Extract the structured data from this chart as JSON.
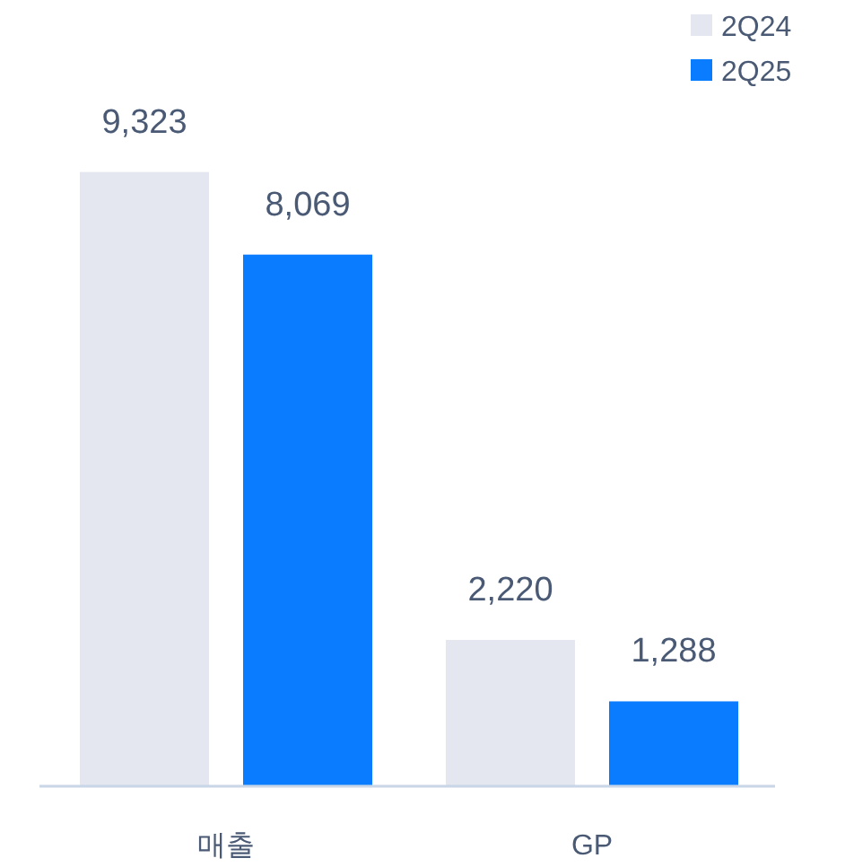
{
  "chart_data": {
    "type": "bar",
    "categories": [
      "매출",
      "GP"
    ],
    "series": [
      {
        "name": "2Q24",
        "color": "#e4e7ef",
        "values": [
          9323,
          2220
        ],
        "value_labels": [
          "9,323",
          "2,220"
        ]
      },
      {
        "name": "2Q25",
        "color": "#0a7cff",
        "values": [
          8069,
          1288
        ],
        "value_labels": [
          "8,069",
          "1,288"
        ]
      }
    ],
    "legend": "top right"
  }
}
